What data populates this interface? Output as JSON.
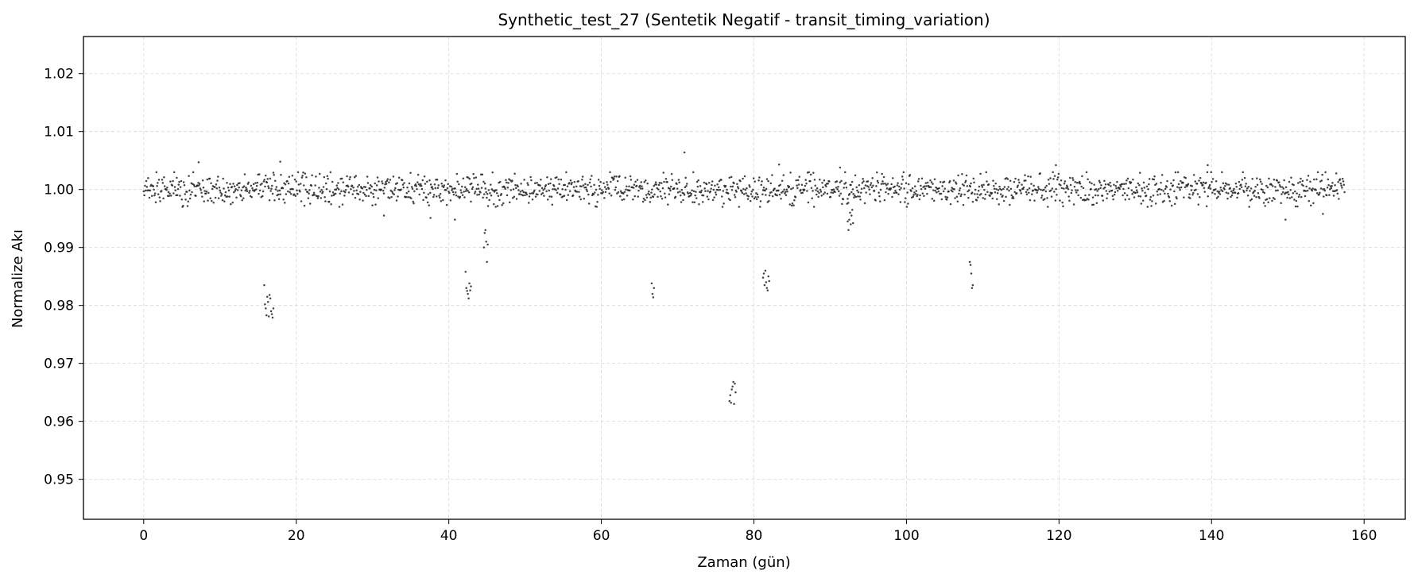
{
  "chart_data": {
    "type": "scatter",
    "title": "Synthetic_test_27 (Sentetik Negatif - transit_timing_variation)",
    "xlabel": "Zaman (gün)",
    "ylabel": "Normalize Akı",
    "xlim": [
      -7.9,
      165.4
    ],
    "ylim": [
      0.9431,
      1.0264
    ],
    "xticks": [
      0,
      20,
      40,
      60,
      80,
      100,
      120,
      140,
      160
    ],
    "yticks": [
      0.95,
      0.96,
      0.97,
      0.98,
      0.99,
      1.0,
      1.01,
      1.02
    ],
    "ytick_labels": [
      "0.95",
      "0.96",
      "0.97",
      "0.98",
      "0.99",
      "1.00",
      "1.01",
      "1.02"
    ],
    "grid": true,
    "marker_color": "#222222",
    "series": [
      {
        "baseline": {
          "x_start": 0.0,
          "x_end": 157.5,
          "step": 0.0833,
          "flux_mean": 1.0,
          "flux_std": 0.0013
        },
        "transit_points": [
          {
            "x": 15.8,
            "y": 0.9835
          },
          {
            "x": 15.9,
            "y": 0.9802
          },
          {
            "x": 16.0,
            "y": 0.9795
          },
          {
            "x": 16.1,
            "y": 0.9783
          },
          {
            "x": 16.2,
            "y": 0.9815
          },
          {
            "x": 16.3,
            "y": 0.9806
          },
          {
            "x": 16.4,
            "y": 0.9781
          },
          {
            "x": 16.5,
            "y": 0.9818
          },
          {
            "x": 16.6,
            "y": 0.9812
          },
          {
            "x": 16.7,
            "y": 0.979
          },
          {
            "x": 16.8,
            "y": 0.9785
          },
          {
            "x": 16.9,
            "y": 0.9779
          },
          {
            "x": 17.0,
            "y": 0.9795
          },
          {
            "x": 42.2,
            "y": 0.9858
          },
          {
            "x": 42.3,
            "y": 0.983
          },
          {
            "x": 42.4,
            "y": 0.9825
          },
          {
            "x": 42.5,
            "y": 0.982
          },
          {
            "x": 42.6,
            "y": 0.9812
          },
          {
            "x": 42.7,
            "y": 0.9838
          },
          {
            "x": 42.8,
            "y": 0.9826
          },
          {
            "x": 42.9,
            "y": 0.9833
          },
          {
            "x": 44.6,
            "y": 0.99
          },
          {
            "x": 44.7,
            "y": 0.9925
          },
          {
            "x": 44.8,
            "y": 0.993
          },
          {
            "x": 44.9,
            "y": 0.991
          },
          {
            "x": 45.0,
            "y": 0.9875
          },
          {
            "x": 45.1,
            "y": 0.9905
          },
          {
            "x": 66.6,
            "y": 0.9838
          },
          {
            "x": 66.7,
            "y": 0.982
          },
          {
            "x": 66.8,
            "y": 0.9814
          },
          {
            "x": 66.9,
            "y": 0.983
          },
          {
            "x": 76.8,
            "y": 0.9635
          },
          {
            "x": 76.9,
            "y": 0.9645
          },
          {
            "x": 77.0,
            "y": 0.9632
          },
          {
            "x": 77.1,
            "y": 0.9655
          },
          {
            "x": 77.2,
            "y": 0.966
          },
          {
            "x": 77.3,
            "y": 0.9668
          },
          {
            "x": 77.4,
            "y": 0.963
          },
          {
            "x": 77.5,
            "y": 0.9665
          },
          {
            "x": 77.6,
            "y": 0.965
          },
          {
            "x": 81.2,
            "y": 0.9848
          },
          {
            "x": 81.3,
            "y": 0.9855
          },
          {
            "x": 81.4,
            "y": 0.9835
          },
          {
            "x": 81.5,
            "y": 0.986
          },
          {
            "x": 81.6,
            "y": 0.984
          },
          {
            "x": 81.7,
            "y": 0.983
          },
          {
            "x": 81.8,
            "y": 0.9826
          },
          {
            "x": 81.9,
            "y": 0.985
          },
          {
            "x": 82.0,
            "y": 0.9842
          },
          {
            "x": 92.3,
            "y": 0.9945
          },
          {
            "x": 92.4,
            "y": 0.993
          },
          {
            "x": 92.5,
            "y": 0.9948
          },
          {
            "x": 92.6,
            "y": 0.996
          },
          {
            "x": 92.7,
            "y": 0.994
          },
          {
            "x": 92.8,
            "y": 0.9955
          },
          {
            "x": 92.9,
            "y": 0.9965
          },
          {
            "x": 93.0,
            "y": 0.9942
          },
          {
            "x": 108.3,
            "y": 0.9875
          },
          {
            "x": 108.4,
            "y": 0.987
          },
          {
            "x": 108.5,
            "y": 0.9855
          },
          {
            "x": 108.6,
            "y": 0.983
          },
          {
            "x": 108.7,
            "y": 0.9835
          }
        ],
        "outliers": [
          {
            "x": 7.2,
            "y": 1.0047
          },
          {
            "x": 17.9,
            "y": 1.0048
          },
          {
            "x": 70.9,
            "y": 1.0064
          },
          {
            "x": 83.3,
            "y": 1.0043
          },
          {
            "x": 91.3,
            "y": 1.0038
          },
          {
            "x": 119.6,
            "y": 1.0042
          },
          {
            "x": 139.5,
            "y": 1.0042
          },
          {
            "x": 40.8,
            "y": 0.9948
          },
          {
            "x": 37.6,
            "y": 0.9951
          },
          {
            "x": 149.7,
            "y": 0.9948
          },
          {
            "x": 31.5,
            "y": 0.9955
          },
          {
            "x": 154.6,
            "y": 0.9958
          }
        ]
      }
    ]
  }
}
